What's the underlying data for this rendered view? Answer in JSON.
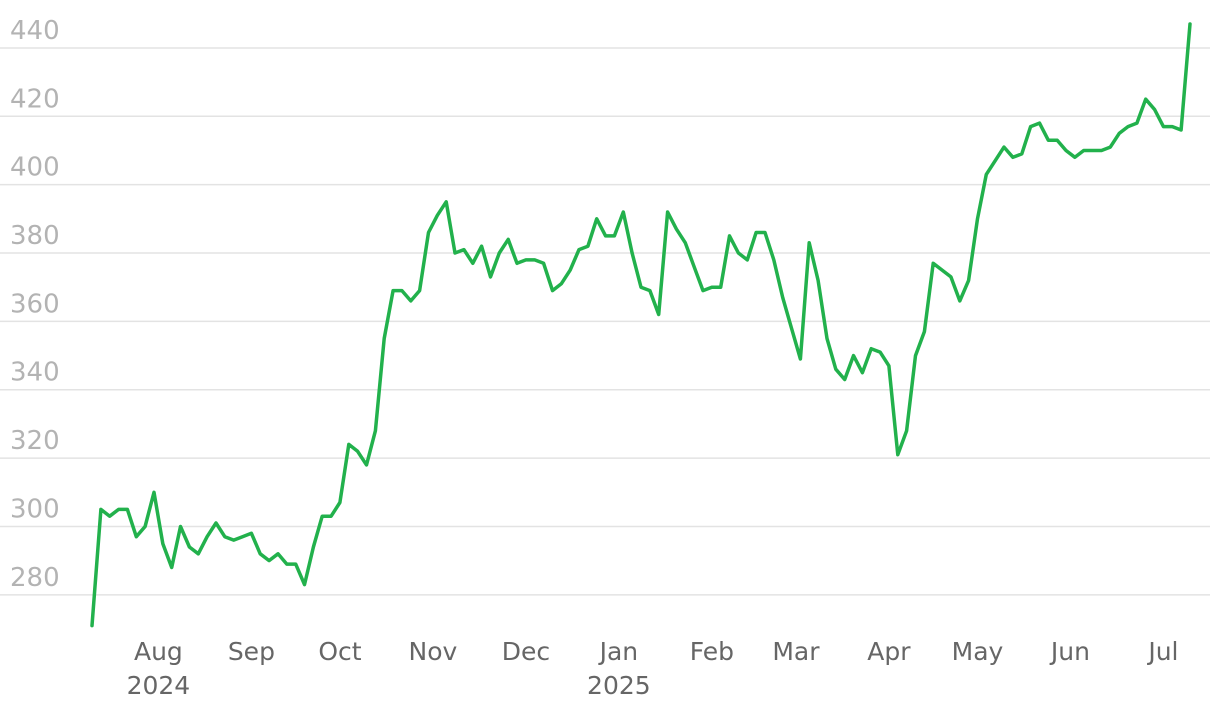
{
  "chart_data": {
    "type": "line",
    "values": [
      271,
      305,
      303,
      305,
      305,
      297,
      300,
      310,
      295,
      288,
      300,
      294,
      292,
      297,
      301,
      297,
      296,
      297,
      298,
      292,
      290,
      292,
      289,
      289,
      283,
      294,
      303,
      303,
      307,
      324,
      322,
      318,
      328,
      355,
      369,
      369,
      366,
      369,
      386,
      391,
      395,
      380,
      381,
      377,
      382,
      373,
      380,
      384,
      377,
      378,
      378,
      377,
      369,
      371,
      375,
      381,
      382,
      390,
      385,
      385,
      392,
      380,
      370,
      369,
      362,
      392,
      387,
      383,
      376,
      369,
      370,
      370,
      385,
      380,
      378,
      386,
      386,
      378,
      367,
      358,
      349,
      383,
      372,
      355,
      346,
      343,
      350,
      345,
      352,
      351,
      347,
      321,
      328,
      350,
      357,
      377,
      375,
      373,
      366,
      372,
      390,
      403,
      407,
      411,
      408,
      409,
      417,
      418,
      413,
      413,
      410,
      408,
      410,
      410,
      410,
      411,
      415,
      417,
      418,
      425,
      422,
      417,
      417,
      416,
      447
    ],
    "color": "#22b14c",
    "xlim": [
      0,
      124
    ],
    "xticks": [
      {
        "value": 7.5,
        "label": "Aug"
      },
      {
        "value": 18,
        "label": "Sep"
      },
      {
        "value": 28,
        "label": "Oct"
      },
      {
        "value": 38.5,
        "label": "Nov"
      },
      {
        "value": 49,
        "label": "Dec"
      },
      {
        "value": 59.5,
        "label": "Jan"
      },
      {
        "value": 70,
        "label": "Feb"
      },
      {
        "value": 79.5,
        "label": "Mar"
      },
      {
        "value": 90,
        "label": "Apr"
      },
      {
        "value": 100,
        "label": "May"
      },
      {
        "value": 110.5,
        "label": "Jun"
      },
      {
        "value": 121,
        "label": "Jul"
      }
    ],
    "xtick_sublabels": [
      {
        "value": 7.5,
        "label": "2024"
      },
      {
        "value": 59.5,
        "label": "2025"
      }
    ],
    "ylim": [
      270,
      448
    ],
    "yticks": [
      280,
      300,
      320,
      340,
      360,
      380,
      400,
      420,
      440
    ],
    "grid": true
  }
}
